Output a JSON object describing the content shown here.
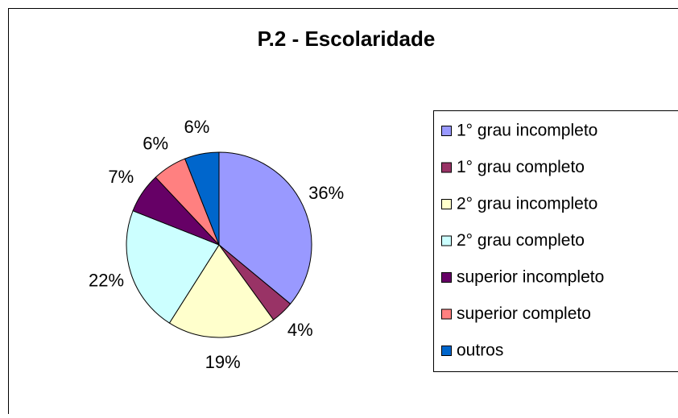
{
  "chart_data": {
    "type": "pie",
    "title": "P.2 - Escolaridade",
    "categories": [
      "1° grau incompleto",
      "1° grau completo",
      "2° grau incompleto",
      "2° grau completo",
      "superior incompleto",
      "superior completo",
      "outros"
    ],
    "values": [
      36,
      4,
      19,
      22,
      7,
      6,
      6
    ],
    "value_labels": [
      "36%",
      "4%",
      "19%",
      "22%",
      "7%",
      "6%",
      "6%"
    ],
    "colors": [
      "#9999ff",
      "#993366",
      "#ffffcc",
      "#ccffff",
      "#660066",
      "#ff8080",
      "#0066cc"
    ],
    "legend": "right"
  }
}
